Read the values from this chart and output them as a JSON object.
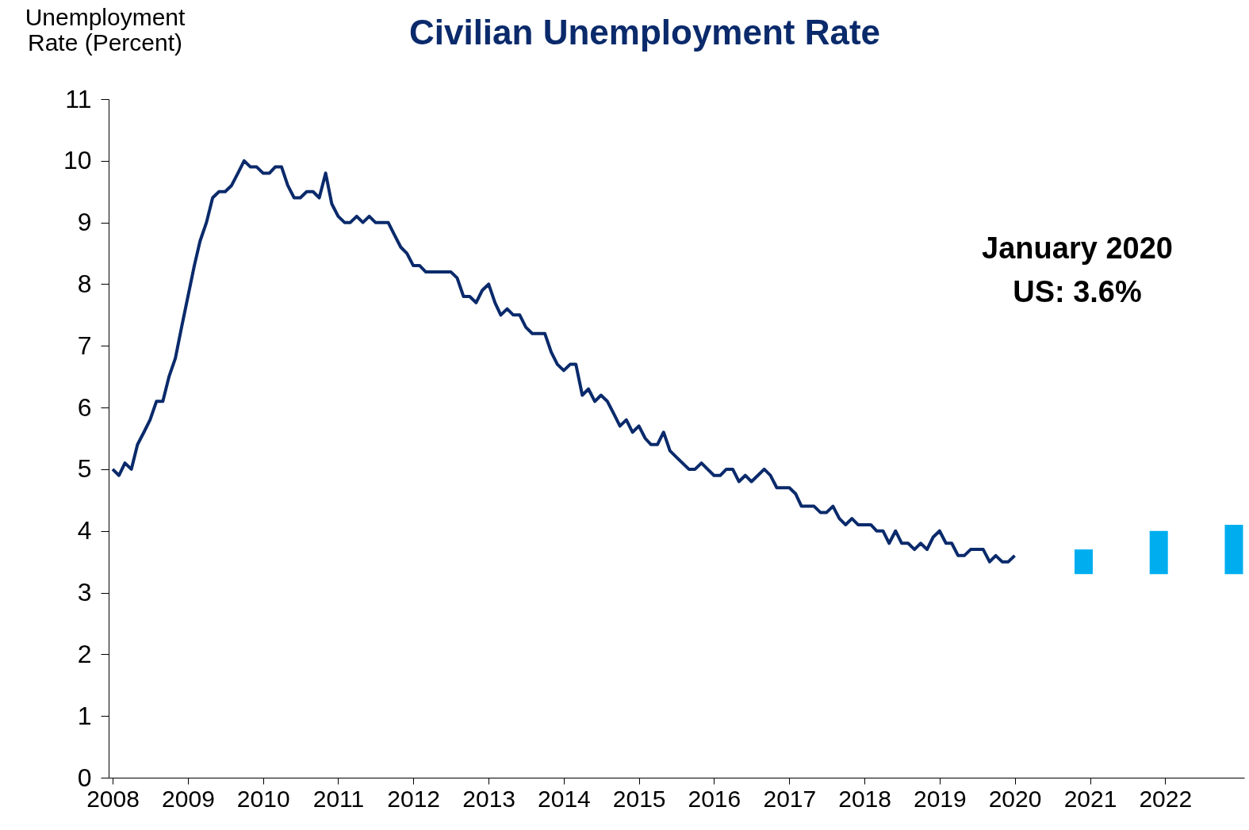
{
  "chart_data": {
    "type": "line",
    "title": "Civilian Unemployment Rate",
    "ylabel": "Unemployment Rate (Percent)",
    "annotations": [
      "January 2020",
      "US: 3.6%"
    ],
    "xlim": [
      "2008",
      "2023"
    ],
    "xticks": [
      "2008",
      "2009",
      "2010",
      "2011",
      "2012",
      "2013",
      "2014",
      "2015",
      "2016",
      "2017",
      "2018",
      "2019",
      "2020",
      "2021",
      "2022"
    ],
    "ylim": [
      0,
      11
    ],
    "yticks": [
      0,
      1,
      2,
      3,
      4,
      5,
      6,
      7,
      8,
      9,
      10,
      11
    ],
    "grid": false,
    "series": [
      {
        "color": "#0a2a6b",
        "x": [
          "2008-01",
          "2008-02",
          "2008-03",
          "2008-04",
          "2008-05",
          "2008-06",
          "2008-07",
          "2008-08",
          "2008-09",
          "2008-10",
          "2008-11",
          "2008-12",
          "2009-01",
          "2009-02",
          "2009-03",
          "2009-04",
          "2009-05",
          "2009-06",
          "2009-07",
          "2009-08",
          "2009-09",
          "2009-10",
          "2009-11",
          "2009-12",
          "2010-01",
          "2010-02",
          "2010-03",
          "2010-04",
          "2010-05",
          "2010-06",
          "2010-07",
          "2010-08",
          "2010-09",
          "2010-10",
          "2010-11",
          "2010-12",
          "2011-01",
          "2011-02",
          "2011-03",
          "2011-04",
          "2011-05",
          "2011-06",
          "2011-07",
          "2011-08",
          "2011-09",
          "2011-10",
          "2011-11",
          "2011-12",
          "2012-01",
          "2012-02",
          "2012-03",
          "2012-04",
          "2012-05",
          "2012-06",
          "2012-07",
          "2012-08",
          "2012-09",
          "2012-10",
          "2012-11",
          "2012-12",
          "2013-01",
          "2013-02",
          "2013-03",
          "2013-04",
          "2013-05",
          "2013-06",
          "2013-07",
          "2013-08",
          "2013-09",
          "2013-10",
          "2013-11",
          "2013-12",
          "2014-01",
          "2014-02",
          "2014-03",
          "2014-04",
          "2014-05",
          "2014-06",
          "2014-07",
          "2014-08",
          "2014-09",
          "2014-10",
          "2014-11",
          "2014-12",
          "2015-01",
          "2015-02",
          "2015-03",
          "2015-04",
          "2015-05",
          "2015-06",
          "2015-07",
          "2015-08",
          "2015-09",
          "2015-10",
          "2015-11",
          "2015-12",
          "2016-01",
          "2016-02",
          "2016-03",
          "2016-04",
          "2016-05",
          "2016-06",
          "2016-07",
          "2016-08",
          "2016-09",
          "2016-10",
          "2016-11",
          "2016-12",
          "2017-01",
          "2017-02",
          "2017-03",
          "2017-04",
          "2017-05",
          "2017-06",
          "2017-07",
          "2017-08",
          "2017-09",
          "2017-10",
          "2017-11",
          "2017-12",
          "2018-01",
          "2018-02",
          "2018-03",
          "2018-04",
          "2018-05",
          "2018-06",
          "2018-07",
          "2018-08",
          "2018-09",
          "2018-10",
          "2018-11",
          "2018-12",
          "2019-01",
          "2019-02",
          "2019-03",
          "2019-04",
          "2019-05",
          "2019-06",
          "2019-07",
          "2019-08",
          "2019-09",
          "2019-10",
          "2019-11",
          "2019-12",
          "2020-01"
        ],
        "values": [
          5.0,
          4.9,
          5.1,
          5.0,
          5.4,
          5.6,
          5.8,
          6.1,
          6.1,
          6.5,
          6.8,
          7.3,
          7.8,
          8.3,
          8.7,
          9.0,
          9.4,
          9.5,
          9.5,
          9.6,
          9.8,
          10.0,
          9.9,
          9.9,
          9.8,
          9.8,
          9.9,
          9.9,
          9.6,
          9.4,
          9.4,
          9.5,
          9.5,
          9.4,
          9.8,
          9.3,
          9.1,
          9.0,
          9.0,
          9.1,
          9.0,
          9.1,
          9.0,
          9.0,
          9.0,
          8.8,
          8.6,
          8.5,
          8.3,
          8.3,
          8.2,
          8.2,
          8.2,
          8.2,
          8.2,
          8.1,
          7.8,
          7.8,
          7.7,
          7.9,
          8.0,
          7.7,
          7.5,
          7.6,
          7.5,
          7.5,
          7.3,
          7.2,
          7.2,
          7.2,
          6.9,
          6.7,
          6.6,
          6.7,
          6.7,
          6.2,
          6.3,
          6.1,
          6.2,
          6.1,
          5.9,
          5.7,
          5.8,
          5.6,
          5.7,
          5.5,
          5.4,
          5.4,
          5.6,
          5.3,
          5.2,
          5.1,
          5.0,
          5.0,
          5.1,
          5.0,
          4.9,
          4.9,
          5.0,
          5.0,
          4.8,
          4.9,
          4.8,
          4.9,
          5.0,
          4.9,
          4.7,
          4.7,
          4.7,
          4.6,
          4.4,
          4.4,
          4.4,
          4.3,
          4.3,
          4.4,
          4.2,
          4.1,
          4.2,
          4.1,
          4.1,
          4.1,
          4.0,
          4.0,
          3.8,
          4.0,
          3.8,
          3.8,
          3.7,
          3.8,
          3.7,
          3.9,
          4.0,
          3.8,
          3.8,
          3.6,
          3.6,
          3.7,
          3.7,
          3.7,
          3.5,
          3.6,
          3.5,
          3.5,
          3.6
        ]
      },
      {
        "type": "bar",
        "color": "#00aeef",
        "x": [
          "2020-12",
          "2021-12",
          "2022-12"
        ],
        "base": [
          3.3,
          3.3,
          3.3
        ],
        "values": [
          0.4,
          0.7,
          0.8
        ]
      }
    ]
  }
}
